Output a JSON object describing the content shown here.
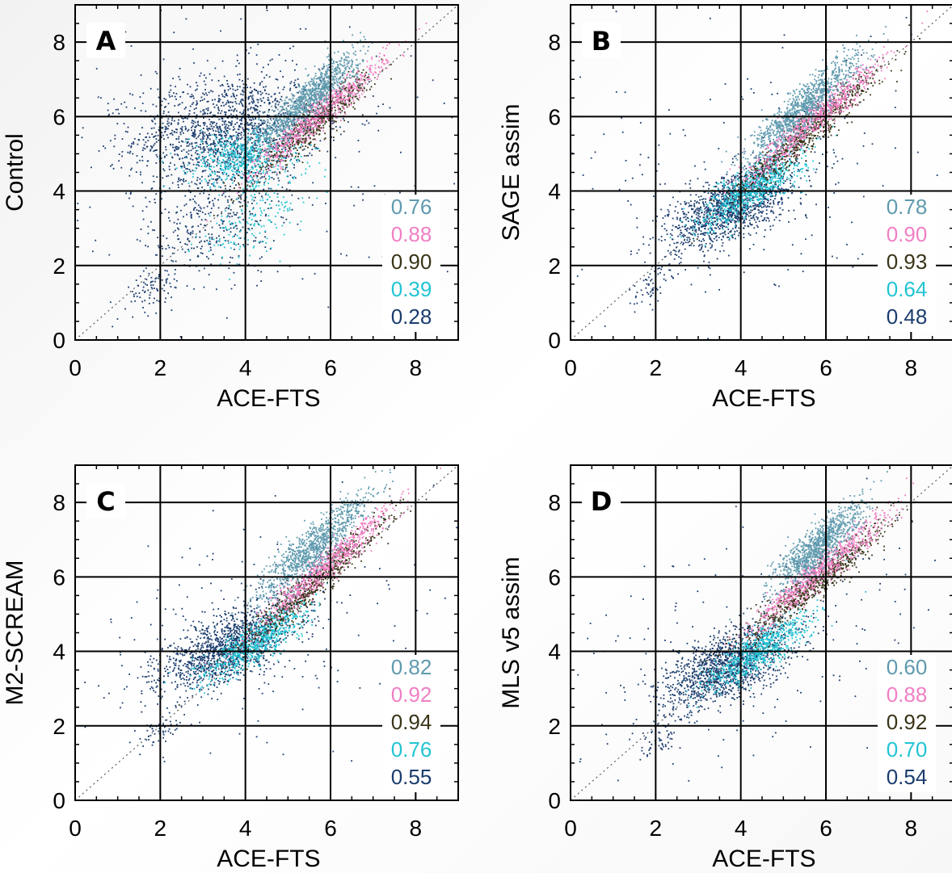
{
  "chart_data": [
    {
      "type": "scatter",
      "panel_label": "A",
      "xlabel": "ACE-FTS",
      "ylabel": "Control",
      "xlim": [
        0,
        9
      ],
      "ylim": [
        0,
        9
      ],
      "x_ticks": [
        "0",
        "2",
        "4",
        "6",
        "8"
      ],
      "y_ticks": [
        "0",
        "2",
        "4",
        "6",
        "8"
      ],
      "grid": true,
      "one_to_one_line": true,
      "correlations": [
        {
          "value": "0.76",
          "color": "#5f9aae"
        },
        {
          "value": "0.88",
          "color": "#f07fc4"
        },
        {
          "value": "0.90",
          "color": "#3a3418"
        },
        {
          "value": "0.39",
          "color": "#22c4d4"
        },
        {
          "value": "0.28",
          "color": "#1b3d6e"
        }
      ],
      "clusters": [
        {
          "color": "#1b3d6e",
          "n": 1500,
          "cx": 3.6,
          "cy": 5.6,
          "sx": 1.1,
          "sy": 0.75,
          "slope": 0.1
        },
        {
          "color": "#1b3d6e",
          "n": 350,
          "cx": 3.2,
          "cy": 3.2,
          "sx": 0.8,
          "sy": 0.8,
          "slope": 0.3
        },
        {
          "color": "#1b3d6e",
          "n": 250,
          "cx": 3.5,
          "cy": 5.0,
          "sx": 3.2,
          "sy": 2.6,
          "slope": 0.0
        },
        {
          "color": "#1b3d6e",
          "n": 70,
          "cx": 1.8,
          "cy": 1.4,
          "sx": 0.3,
          "sy": 0.25,
          "slope": 0.5
        },
        {
          "color": "#22c4d4",
          "n": 500,
          "cx": 3.9,
          "cy": 4.9,
          "sx": 0.6,
          "sy": 0.35,
          "slope": 0.1
        },
        {
          "color": "#22c4d4",
          "n": 200,
          "cx": 4.2,
          "cy": 3.3,
          "sx": 0.7,
          "sy": 0.5,
          "slope": 0.6
        },
        {
          "color": "#3a3418",
          "n": 600,
          "cx": 5.6,
          "cy": 5.8,
          "sx": 0.7,
          "sy": 0.25,
          "slope": 0.95
        },
        {
          "color": "#f07fc4",
          "n": 650,
          "cx": 5.8,
          "cy": 6.1,
          "sx": 0.75,
          "sy": 0.22,
          "slope": 0.95
        },
        {
          "color": "#5f9aae",
          "n": 1000,
          "cx": 5.5,
          "cy": 6.5,
          "sx": 0.6,
          "sy": 0.28,
          "slope": 0.95
        }
      ]
    },
    {
      "type": "scatter",
      "panel_label": "B",
      "xlabel": "ACE-FTS",
      "ylabel": "SAGE assim",
      "xlim": [
        0,
        9
      ],
      "ylim": [
        0,
        9
      ],
      "x_ticks": [
        "0",
        "2",
        "4",
        "6",
        "8"
      ],
      "y_ticks": [
        "0",
        "2",
        "4",
        "6",
        "8"
      ],
      "grid": true,
      "one_to_one_line": true,
      "correlations": [
        {
          "value": "0.78",
          "color": "#5f9aae"
        },
        {
          "value": "0.90",
          "color": "#f07fc4"
        },
        {
          "value": "0.93",
          "color": "#3a3418"
        },
        {
          "value": "0.64",
          "color": "#22c4d4"
        },
        {
          "value": "0.48",
          "color": "#1b3d6e"
        }
      ],
      "clusters": [
        {
          "color": "#1b3d6e",
          "n": 1300,
          "cx": 3.8,
          "cy": 3.6,
          "sx": 0.75,
          "sy": 0.45,
          "slope": 0.5
        },
        {
          "color": "#1b3d6e",
          "n": 200,
          "cx": 4.0,
          "cy": 4.0,
          "sx": 2.4,
          "sy": 1.8,
          "slope": 0.3
        },
        {
          "color": "#1b3d6e",
          "n": 60,
          "cx": 2.0,
          "cy": 1.5,
          "sx": 0.3,
          "sy": 0.25,
          "slope": 0.6
        },
        {
          "color": "#22c4d4",
          "n": 700,
          "cx": 4.3,
          "cy": 4.1,
          "sx": 0.6,
          "sy": 0.3,
          "slope": 0.7
        },
        {
          "color": "#3a3418",
          "n": 700,
          "cx": 5.6,
          "cy": 5.6,
          "sx": 0.85,
          "sy": 0.25,
          "slope": 0.95
        },
        {
          "color": "#f07fc4",
          "n": 700,
          "cx": 5.8,
          "cy": 6.0,
          "sx": 0.8,
          "sy": 0.22,
          "slope": 0.95
        },
        {
          "color": "#5f9aae",
          "n": 1000,
          "cx": 5.5,
          "cy": 6.3,
          "sx": 0.65,
          "sy": 0.3,
          "slope": 1.0
        }
      ]
    },
    {
      "type": "scatter",
      "panel_label": "C",
      "xlabel": "ACE-FTS",
      "ylabel": "M2-SCREAM",
      "xlim": [
        0,
        9
      ],
      "ylim": [
        0,
        9
      ],
      "x_ticks": [
        "0",
        "2",
        "4",
        "6",
        "8"
      ],
      "y_ticks": [
        "0",
        "2",
        "4",
        "6",
        "8"
      ],
      "grid": true,
      "one_to_one_line": true,
      "correlations": [
        {
          "value": "0.82",
          "color": "#5f9aae"
        },
        {
          "value": "0.92",
          "color": "#f07fc4"
        },
        {
          "value": "0.94",
          "color": "#3a3418"
        },
        {
          "value": "0.76",
          "color": "#22c4d4"
        },
        {
          "value": "0.55",
          "color": "#1b3d6e"
        }
      ],
      "clusters": [
        {
          "color": "#1b3d6e",
          "n": 1300,
          "cx": 3.6,
          "cy": 4.1,
          "sx": 0.8,
          "sy": 0.45,
          "slope": 0.45
        },
        {
          "color": "#1b3d6e",
          "n": 200,
          "cx": 4.0,
          "cy": 4.4,
          "sx": 2.4,
          "sy": 1.7,
          "slope": 0.3
        },
        {
          "color": "#1b3d6e",
          "n": 50,
          "cx": 2.0,
          "cy": 1.9,
          "sx": 0.25,
          "sy": 0.2,
          "slope": 0.5
        },
        {
          "color": "#22c4d4",
          "n": 700,
          "cx": 4.3,
          "cy": 4.3,
          "sx": 0.6,
          "sy": 0.28,
          "slope": 0.7
        },
        {
          "color": "#3a3418",
          "n": 700,
          "cx": 5.6,
          "cy": 5.8,
          "sx": 0.85,
          "sy": 0.25,
          "slope": 1.0
        },
        {
          "color": "#f07fc4",
          "n": 700,
          "cx": 5.9,
          "cy": 6.3,
          "sx": 0.8,
          "sy": 0.22,
          "slope": 1.0
        },
        {
          "color": "#5f9aae",
          "n": 1000,
          "cx": 5.6,
          "cy": 6.8,
          "sx": 0.65,
          "sy": 0.3,
          "slope": 1.0
        }
      ]
    },
    {
      "type": "scatter",
      "panel_label": "D",
      "xlabel": "ACE-FTS",
      "ylabel": "MLS v5 assim",
      "xlim": [
        0,
        9
      ],
      "ylim": [
        0,
        9
      ],
      "x_ticks": [
        "0",
        "2",
        "4",
        "6",
        "8"
      ],
      "y_ticks": [
        "0",
        "2",
        "4",
        "6",
        "8"
      ],
      "grid": true,
      "one_to_one_line": true,
      "correlations": [
        {
          "value": "0.60",
          "color": "#5f9aae"
        },
        {
          "value": "0.88",
          "color": "#f07fc4"
        },
        {
          "value": "0.92",
          "color": "#3a3418"
        },
        {
          "value": "0.70",
          "color": "#22c4d4"
        },
        {
          "value": "0.54",
          "color": "#1b3d6e"
        }
      ],
      "clusters": [
        {
          "color": "#1b3d6e",
          "n": 1300,
          "cx": 3.7,
          "cy": 3.6,
          "sx": 0.8,
          "sy": 0.45,
          "slope": 0.45
        },
        {
          "color": "#1b3d6e",
          "n": 200,
          "cx": 4.0,
          "cy": 4.0,
          "sx": 2.4,
          "sy": 1.7,
          "slope": 0.3
        },
        {
          "color": "#1b3d6e",
          "n": 50,
          "cx": 2.0,
          "cy": 1.5,
          "sx": 0.25,
          "sy": 0.25,
          "slope": 0.5
        },
        {
          "color": "#22c4d4",
          "n": 700,
          "cx": 4.4,
          "cy": 4.0,
          "sx": 0.6,
          "sy": 0.28,
          "slope": 0.7
        },
        {
          "color": "#3a3418",
          "n": 700,
          "cx": 5.7,
          "cy": 5.8,
          "sx": 0.85,
          "sy": 0.25,
          "slope": 0.9
        },
        {
          "color": "#f07fc4",
          "n": 700,
          "cx": 5.9,
          "cy": 6.2,
          "sx": 0.8,
          "sy": 0.22,
          "slope": 0.95
        },
        {
          "color": "#5f9aae",
          "n": 1000,
          "cx": 5.8,
          "cy": 6.8,
          "sx": 0.5,
          "sy": 0.3,
          "slope": 0.9
        }
      ]
    }
  ]
}
